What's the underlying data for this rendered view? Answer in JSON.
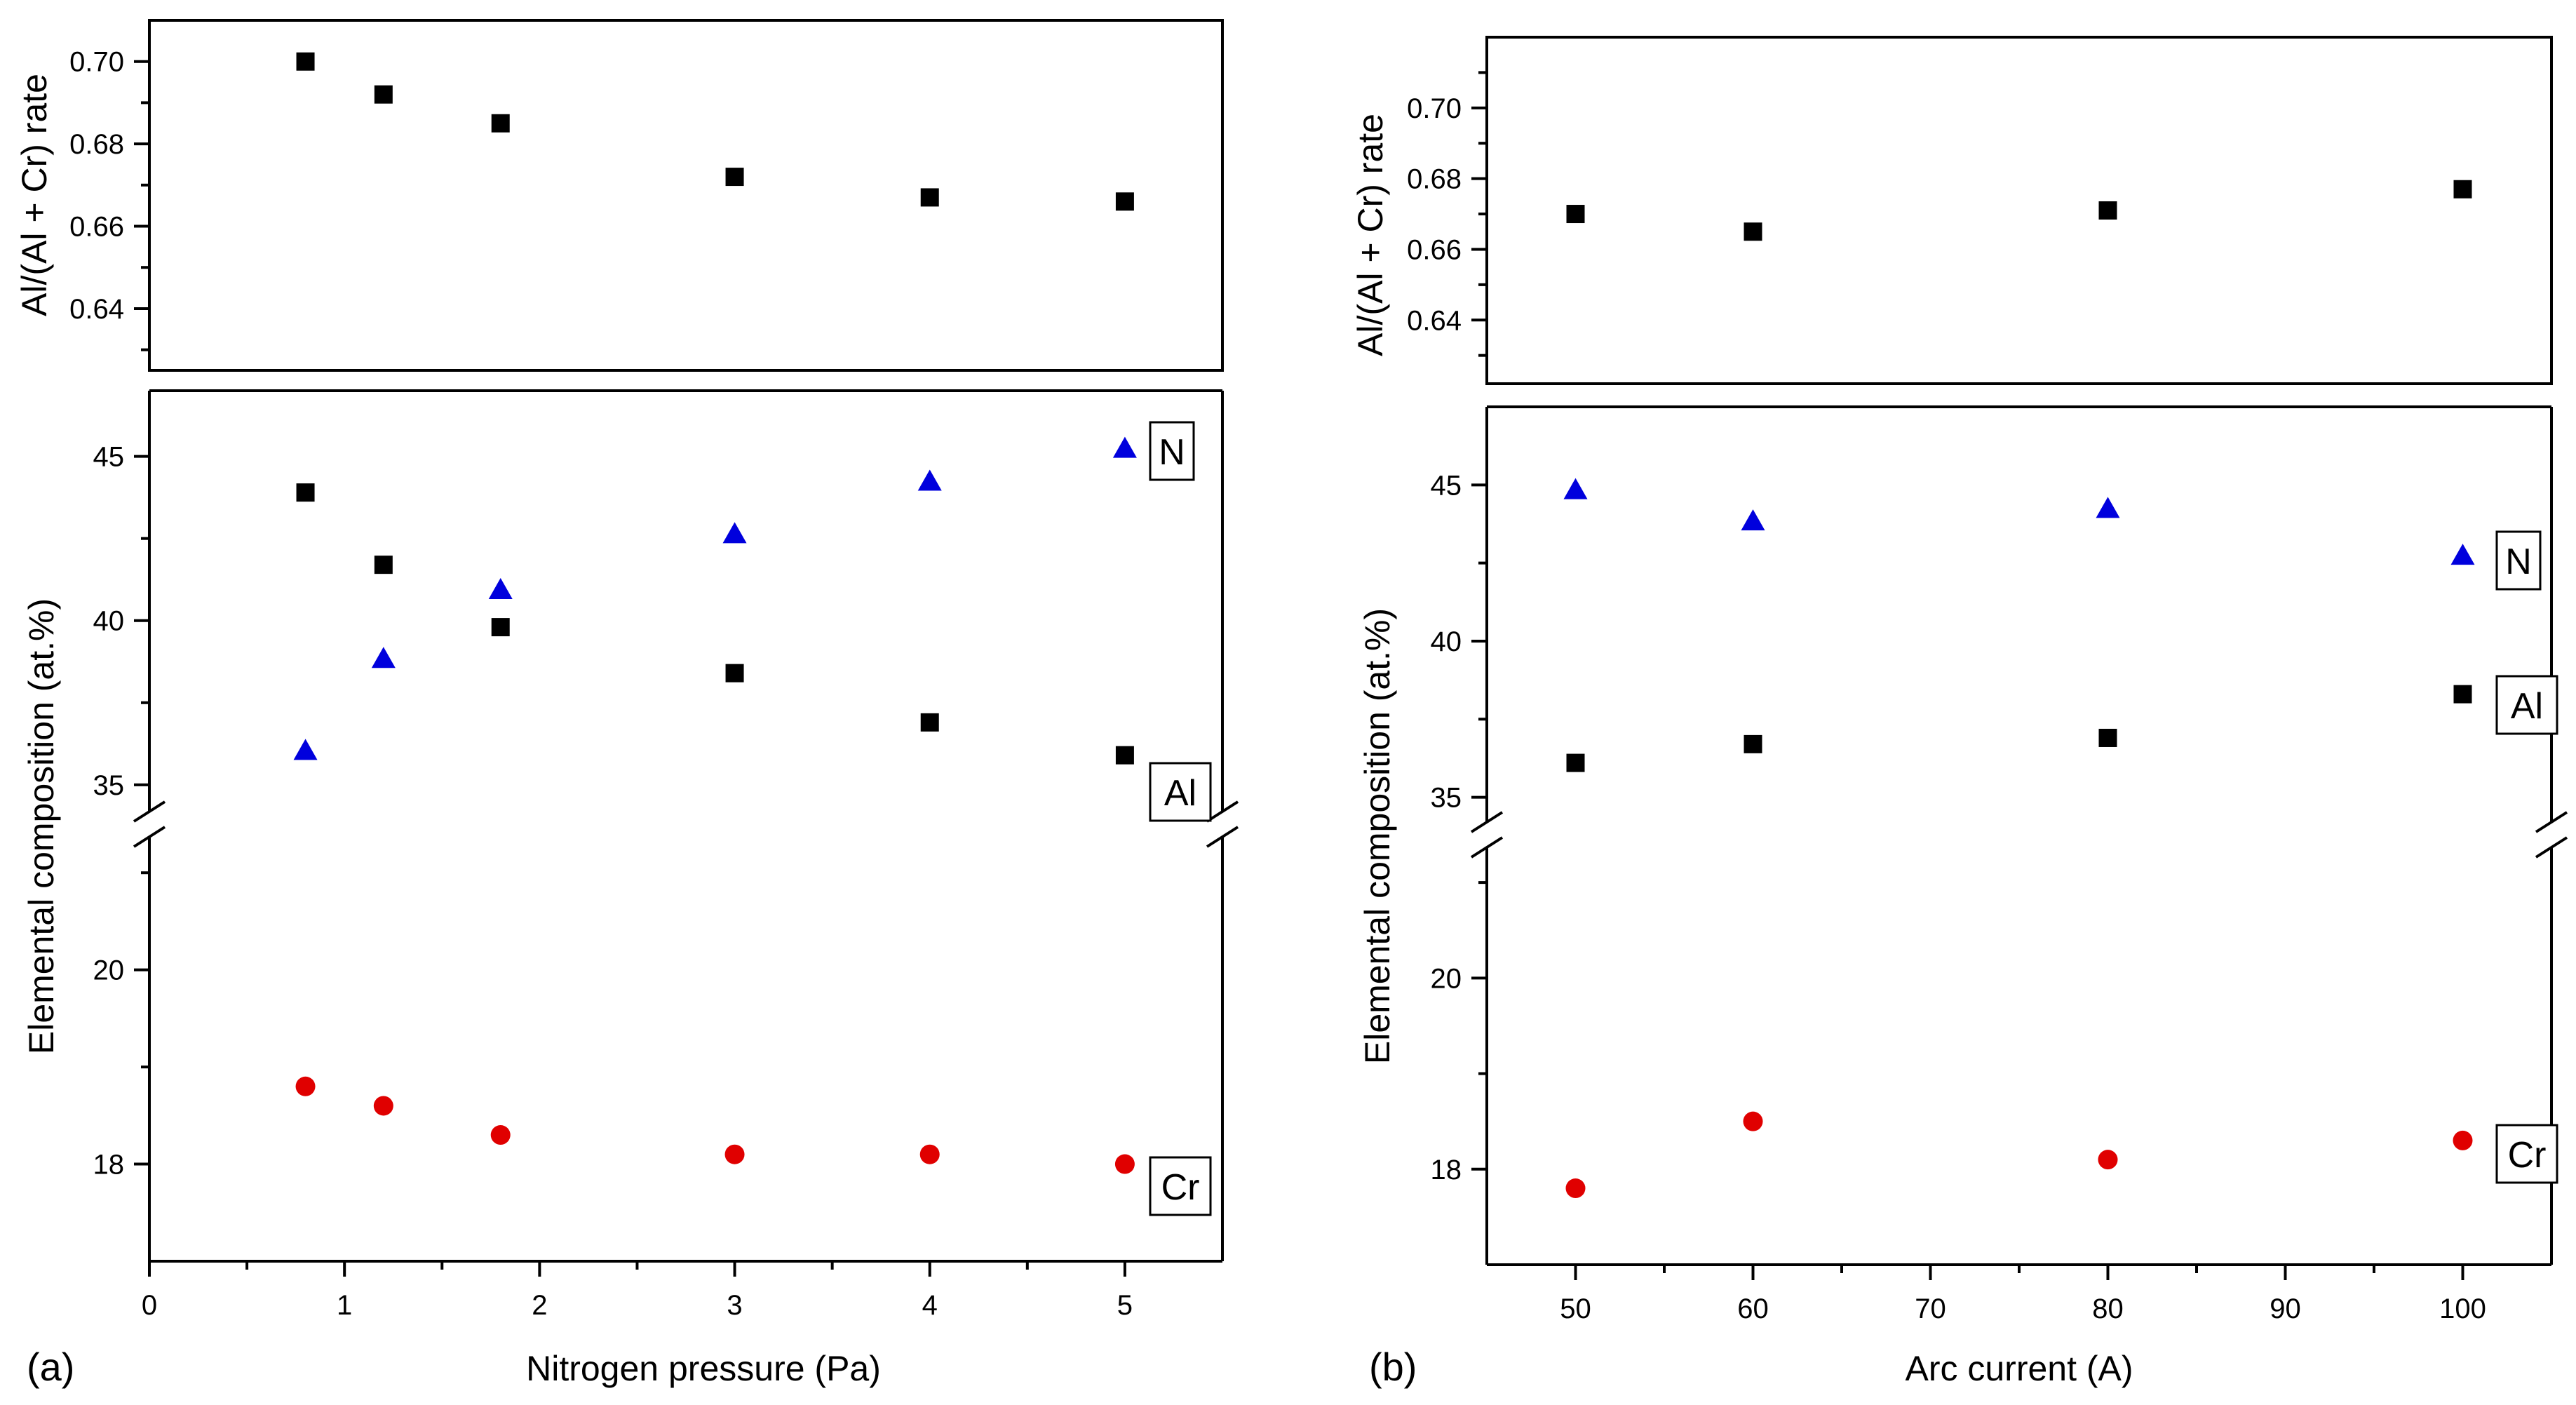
{
  "colors": {
    "Al": "#000000",
    "N": "#0000dd",
    "Cr": "#e00000"
  },
  "chart_data": [
    {
      "id": "a",
      "type": "scatter",
      "panel_label": "(a)",
      "xlabel": "Nitrogen pressure (Pa)",
      "xlim": [
        0,
        5.5
      ],
      "xticks": [
        0,
        1,
        2,
        3,
        4,
        5
      ],
      "xtick_labels": [
        "0",
        "1",
        "2",
        "3",
        "4",
        "5"
      ],
      "top": {
        "ylabel": "Al/(Al + Cr) rate",
        "ylim": [
          0.625,
          0.71
        ],
        "yticks": [
          0.64,
          0.66,
          0.68,
          0.7
        ],
        "ytick_labels": [
          "0.64",
          "0.66",
          "0.68",
          "0.70"
        ],
        "series": [
          {
            "name": "Al/(Al+Cr)",
            "marker": "square",
            "color": "#000000",
            "x": [
              0.8,
              1.2,
              1.8,
              3,
              4,
              5
            ],
            "y": [
              0.7,
              0.692,
              0.685,
              0.672,
              0.667,
              0.666
            ]
          }
        ]
      },
      "bottom": {
        "ylabel": "Elemental composition (at.%)",
        "segments": [
          {
            "ylim": [
              33.8,
              47.0
            ],
            "yticks": [
              35,
              40,
              45
            ],
            "ytick_labels": [
              "35",
              "40",
              "45"
            ]
          },
          {
            "ylim": [
              17.0,
              21.5
            ],
            "yticks": [
              18,
              20
            ],
            "ytick_labels": [
              "18",
              "20"
            ]
          }
        ],
        "series": [
          {
            "name": "N",
            "marker": "triangle",
            "color": "#0000dd",
            "x": [
              0.8,
              1.2,
              1.8,
              3,
              4,
              5
            ],
            "y": [
              36.0,
              38.8,
              40.9,
              42.6,
              44.2,
              45.2
            ],
            "label": "N"
          },
          {
            "name": "Al",
            "marker": "square",
            "color": "#000000",
            "x": [
              0.8,
              1.2,
              1.8,
              3,
              4,
              5
            ],
            "y": [
              43.9,
              41.7,
              39.8,
              38.4,
              36.9,
              35.9
            ],
            "label": "Al"
          },
          {
            "name": "Cr",
            "marker": "circle",
            "color": "#e00000",
            "x": [
              0.8,
              1.2,
              1.8,
              3,
              4,
              5
            ],
            "y": [
              18.8,
              18.6,
              18.3,
              18.1,
              18.1,
              18.0
            ],
            "label": "Cr"
          }
        ]
      }
    },
    {
      "id": "b",
      "type": "scatter",
      "panel_label": "(b)",
      "xlabel": "Arc current (A)",
      "xlim": [
        45,
        105
      ],
      "xticks": [
        50,
        60,
        70,
        80,
        90,
        100
      ],
      "xtick_labels": [
        "50",
        "60",
        "70",
        "80",
        "90",
        "100"
      ],
      "top": {
        "ylabel": "Al/(Al + Cr) rate",
        "ylim": [
          0.622,
          0.72
        ],
        "yticks": [
          0.64,
          0.66,
          0.68,
          0.7
        ],
        "ytick_labels": [
          "0.64",
          "0.66",
          "0.68",
          "0.70"
        ],
        "series": [
          {
            "name": "Al/(Al+Cr)",
            "marker": "square",
            "color": "#000000",
            "x": [
              50,
              60,
              80,
              100
            ],
            "y": [
              0.67,
              0.665,
              0.671,
              0.677
            ]
          }
        ]
      },
      "bottom": {
        "ylabel": "Elemental composition (at.%)",
        "segments": [
          {
            "ylim": [
              33.8,
              47.5
            ],
            "yticks": [
              35,
              40,
              45
            ],
            "ytick_labels": [
              "35",
              "40",
              "45"
            ]
          },
          {
            "ylim": [
              17.0,
              21.5
            ],
            "yticks": [
              18,
              20
            ],
            "ytick_labels": [
              "18",
              "20"
            ]
          }
        ],
        "series": [
          {
            "name": "N",
            "marker": "triangle",
            "color": "#0000dd",
            "x": [
              50,
              60,
              80,
              100
            ],
            "y": [
              44.8,
              43.8,
              44.2,
              42.7
            ],
            "label": "N"
          },
          {
            "name": "Al",
            "marker": "square",
            "color": "#000000",
            "x": [
              50,
              60,
              80,
              100
            ],
            "y": [
              36.1,
              36.7,
              36.9,
              38.3
            ],
            "label": "Al"
          },
          {
            "name": "Cr",
            "marker": "circle",
            "color": "#e00000",
            "x": [
              50,
              60,
              80,
              100
            ],
            "y": [
              17.8,
              18.5,
              18.1,
              18.3
            ],
            "label": "Cr"
          }
        ]
      }
    }
  ]
}
